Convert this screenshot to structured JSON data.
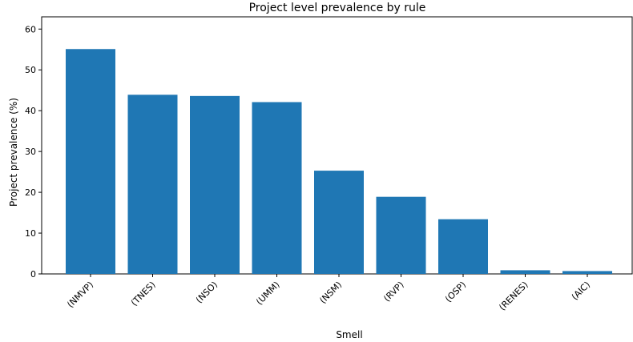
{
  "chart_data": {
    "type": "bar",
    "title": "Project level prevalence by rule",
    "xlabel": "Smell",
    "ylabel": "Project prevalence (%)",
    "categories": [
      "(NMVP)",
      "(TNES)",
      "(NSO)",
      "(UMM)",
      "(NSM)",
      "(RVP)",
      "(OSP)",
      "(RENES)",
      "(AIC)"
    ],
    "values": [
      55.1,
      43.9,
      43.6,
      42.1,
      25.3,
      18.9,
      13.4,
      0.9,
      0.7
    ],
    "ylim": [
      0,
      63
    ],
    "yticks": [
      0,
      10,
      20,
      30,
      40,
      50,
      60
    ],
    "bar_color": "#1f77b4",
    "grid": false
  }
}
